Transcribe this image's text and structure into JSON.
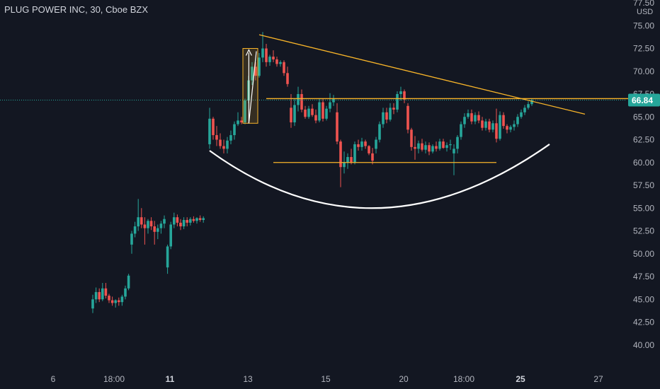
{
  "chart_data": {
    "type": "candlestick",
    "title": "PLUG POWER INC, 30, Cboe BZX",
    "currency": "USD",
    "last_price": 66.84,
    "ylim": [
      37.5,
      77.5
    ],
    "y_ticks": [
      "40.00",
      "42.50",
      "45.00",
      "47.50",
      "50.00",
      "52.50",
      "55.00",
      "57.50",
      "60.00",
      "62.50",
      "65.00",
      "67.50",
      "70.00",
      "72.50",
      "75.00",
      "77.50"
    ],
    "x_ticks": [
      {
        "label": "6",
        "bold": false
      },
      {
        "label": "18:00",
        "bold": false
      },
      {
        "label": "11",
        "bold": true
      },
      {
        "label": "13",
        "bold": false
      },
      {
        "label": "15",
        "bold": false
      },
      {
        "label": "20",
        "bold": false
      },
      {
        "label": "18:00",
        "bold": false
      },
      {
        "label": "25",
        "bold": true
      },
      {
        "label": "27",
        "bold": false
      }
    ],
    "colors": {
      "background": "#131722",
      "up": "#26a69a",
      "down": "#ef5350",
      "trendline": "#f9b529",
      "curve": "#ffffff",
      "last_price_tag": "#26a69a",
      "price_line": "#ffeb3b"
    },
    "candles": [
      [
        44.0,
        45.5,
        43.5,
        45.0
      ],
      [
        45.0,
        46.3,
        44.6,
        45.8
      ],
      [
        45.8,
        46.2,
        44.7,
        45.0
      ],
      [
        45.0,
        46.8,
        44.8,
        46.2
      ],
      [
        46.2,
        46.8,
        45.1,
        45.4
      ],
      [
        45.4,
        45.6,
        44.6,
        44.9
      ],
      [
        44.9,
        45.3,
        44.3,
        44.6
      ],
      [
        44.6,
        45.0,
        44.1,
        44.9
      ],
      [
        44.9,
        45.2,
        44.3,
        44.7
      ],
      [
        44.7,
        45.5,
        44.3,
        45.3
      ],
      [
        45.3,
        46.5,
        45.0,
        46.2
      ],
      [
        46.2,
        47.8,
        46.0,
        47.6
      ],
      [
        51.0,
        52.5,
        50.0,
        52.2
      ],
      [
        52.2,
        53.5,
        51.8,
        53.0
      ],
      [
        53.0,
        56.0,
        52.5,
        54.0
      ],
      [
        54.0,
        55.0,
        52.8,
        53.2
      ],
      [
        53.2,
        54.0,
        51.0,
        52.8
      ],
      [
        52.8,
        53.8,
        52.2,
        53.6
      ],
      [
        53.6,
        54.0,
        52.6,
        53.0
      ],
      [
        53.0,
        53.6,
        51.0,
        52.4
      ],
      [
        52.4,
        53.2,
        51.6,
        52.8
      ],
      [
        52.8,
        53.6,
        52.2,
        53.3
      ],
      [
        53.3,
        54.2,
        52.8,
        53.8
      ],
      [
        48.5,
        51.0,
        47.8,
        50.8
      ],
      [
        50.8,
        53.5,
        50.5,
        53.2
      ],
      [
        53.2,
        54.5,
        52.8,
        54.0
      ],
      [
        54.0,
        54.3,
        53.0,
        53.4
      ],
      [
        53.4,
        53.8,
        52.6,
        53.0
      ],
      [
        53.0,
        54.0,
        52.7,
        53.7
      ],
      [
        53.7,
        54.0,
        53.0,
        53.4
      ],
      [
        53.4,
        54.0,
        53.1,
        53.8
      ],
      [
        53.8,
        54.1,
        53.4,
        53.6
      ],
      [
        53.6,
        54.0,
        53.3,
        53.9
      ],
      [
        53.9,
        54.2,
        53.5,
        53.7
      ],
      [
        53.7,
        54.1,
        53.4,
        53.9
      ],
      [
        62.0,
        66.0,
        61.5,
        64.8
      ],
      [
        64.8,
        65.0,
        62.5,
        63.0
      ],
      [
        63.0,
        64.0,
        61.8,
        62.5
      ],
      [
        62.5,
        63.2,
        61.5,
        61.8
      ],
      [
        61.8,
        62.5,
        61.0,
        61.5
      ],
      [
        61.5,
        62.8,
        61.0,
        62.4
      ],
      [
        62.4,
        63.5,
        62.0,
        63.0
      ],
      [
        63.0,
        64.5,
        62.5,
        64.2
      ],
      [
        64.2,
        65.5,
        64.0,
        64.6
      ],
      [
        64.6,
        65.0,
        64.2,
        64.4
      ],
      [
        64.4,
        67.0,
        64.2,
        66.8
      ],
      [
        66.8,
        69.5,
        66.5,
        69.0
      ],
      [
        69.0,
        71.0,
        68.5,
        70.5
      ],
      [
        70.5,
        71.0,
        69.0,
        69.5
      ],
      [
        69.5,
        72.0,
        69.3,
        71.5
      ],
      [
        71.5,
        74.3,
        71.0,
        72.5
      ],
      [
        72.5,
        73.0,
        70.5,
        71.0
      ],
      [
        71.0,
        71.8,
        70.6,
        71.6
      ],
      [
        71.6,
        72.3,
        71.0,
        71.3
      ],
      [
        71.3,
        71.6,
        70.5,
        70.8
      ],
      [
        70.8,
        71.2,
        70.5,
        71.0
      ],
      [
        71.0,
        71.2,
        69.5,
        69.8
      ],
      [
        69.8,
        70.5,
        68.3,
        68.6
      ],
      [
        66.0,
        67.5,
        63.8,
        64.4
      ],
      [
        64.4,
        67.0,
        64.0,
        66.3
      ],
      [
        66.3,
        68.3,
        65.6,
        67.5
      ],
      [
        67.5,
        68.0,
        65.5,
        65.8
      ],
      [
        65.8,
        66.2,
        64.8,
        65.0
      ],
      [
        65.0,
        66.2,
        64.8,
        65.9
      ],
      [
        65.9,
        66.4,
        65.0,
        65.2
      ],
      [
        65.2,
        65.8,
        64.3,
        64.6
      ],
      [
        64.6,
        67.0,
        64.4,
        66.6
      ],
      [
        66.6,
        67.0,
        64.5,
        64.8
      ],
      [
        64.8,
        66.2,
        64.6,
        65.9
      ],
      [
        65.9,
        67.6,
        65.5,
        66.6
      ],
      [
        66.6,
        67.4,
        66.2,
        67.0
      ],
      [
        65.5,
        66.5,
        62.0,
        62.3
      ],
      [
        62.3,
        62.5,
        57.3,
        59.5
      ],
      [
        59.5,
        61.2,
        58.8,
        60.0
      ],
      [
        60.0,
        61.0,
        59.3,
        60.6
      ],
      [
        60.6,
        61.5,
        59.8,
        60.0
      ],
      [
        60.0,
        62.3,
        59.8,
        62.0
      ],
      [
        62.0,
        62.5,
        61.3,
        61.7
      ],
      [
        61.7,
        62.7,
        61.3,
        62.3
      ],
      [
        62.3,
        62.5,
        61.5,
        61.8
      ],
      [
        61.8,
        61.9,
        60.8,
        61.0
      ],
      [
        61.0,
        61.6,
        59.8,
        60.2
      ],
      [
        61.5,
        62.8,
        61.0,
        62.5
      ],
      [
        62.5,
        64.5,
        62.2,
        64.2
      ],
      [
        64.2,
        66.0,
        63.8,
        65.5
      ],
      [
        65.5,
        66.0,
        64.3,
        64.7
      ],
      [
        64.7,
        66.5,
        64.5,
        66.0
      ],
      [
        66.0,
        66.5,
        65.3,
        65.8
      ],
      [
        65.8,
        67.8,
        65.5,
        67.5
      ],
      [
        67.5,
        68.3,
        66.8,
        67.8
      ],
      [
        67.8,
        68.0,
        66.5,
        66.9
      ],
      [
        66.2,
        66.5,
        63.2,
        63.6
      ],
      [
        63.6,
        63.8,
        61.3,
        61.7
      ],
      [
        61.7,
        62.9,
        60.3,
        61.5
      ],
      [
        61.5,
        62.4,
        61.0,
        62.1
      ],
      [
        62.1,
        62.6,
        61.2,
        61.4
      ],
      [
        61.4,
        62.3,
        61.0,
        61.9
      ],
      [
        61.9,
        62.2,
        60.8,
        61.2
      ],
      [
        61.2,
        62.0,
        61.0,
        61.8
      ],
      [
        61.8,
        62.3,
        61.2,
        61.5
      ],
      [
        61.5,
        62.6,
        61.3,
        62.3
      ],
      [
        62.3,
        62.6,
        61.5,
        61.6
      ],
      [
        61.6,
        62.2,
        61.2,
        61.9
      ],
      [
        61.9,
        62.5,
        61.4,
        62.0
      ],
      [
        61.0,
        62.0,
        58.6,
        61.5
      ],
      [
        61.5,
        63.0,
        61.0,
        62.8
      ],
      [
        62.8,
        64.5,
        62.5,
        64.2
      ],
      [
        64.2,
        65.4,
        63.8,
        65.0
      ],
      [
        65.0,
        65.8,
        64.8,
        65.4
      ],
      [
        65.4,
        65.8,
        64.2,
        64.5
      ],
      [
        64.5,
        65.5,
        64.2,
        65.2
      ],
      [
        65.2,
        65.6,
        64.3,
        64.6
      ],
      [
        64.6,
        65.0,
        63.5,
        63.8
      ],
      [
        63.8,
        64.8,
        63.5,
        64.5
      ],
      [
        64.5,
        64.8,
        63.3,
        63.6
      ],
      [
        63.6,
        64.6,
        63.3,
        64.3
      ],
      [
        64.3,
        65.9,
        62.2,
        62.6
      ],
      [
        62.6,
        65.6,
        62.4,
        65.2
      ],
      [
        65.2,
        65.5,
        63.7,
        64.0
      ],
      [
        64.0,
        64.2,
        63.2,
        63.6
      ],
      [
        63.6,
        64.1,
        63.3,
        63.9
      ],
      [
        63.9,
        64.6,
        63.5,
        64.2
      ],
      [
        64.2,
        65.3,
        63.9,
        65.0
      ],
      [
        65.0,
        65.8,
        64.8,
        65.5
      ],
      [
        65.5,
        66.3,
        65.2,
        66.0
      ],
      [
        66.0,
        66.7,
        65.8,
        66.4
      ],
      [
        66.4,
        67.0,
        66.2,
        66.84
      ]
    ],
    "annotations": {
      "triangle_top_line": {
        "from": {
          "i": 49,
          "price": 74.0
        },
        "to": {
          "i": 141,
          "price": 65.3
        }
      },
      "triangle_horizontal": {
        "from": {
          "i": 51,
          "price": 67.0
        },
        "to": {
          "i": 155,
          "price": 67.0
        }
      },
      "support_line": {
        "from": {
          "i": 53,
          "price": 60.0
        },
        "to": {
          "i": 116,
          "price": 60.0
        }
      },
      "arrow_box": {
        "from_i": 45,
        "to_i": 48,
        "low": 64.3,
        "high": 72.5
      },
      "cup_curve": [
        {
          "i": 35,
          "price": 61.3
        },
        {
          "i": 82,
          "price": 55.0
        },
        {
          "i": 131,
          "price": 62.0
        }
      ]
    }
  }
}
